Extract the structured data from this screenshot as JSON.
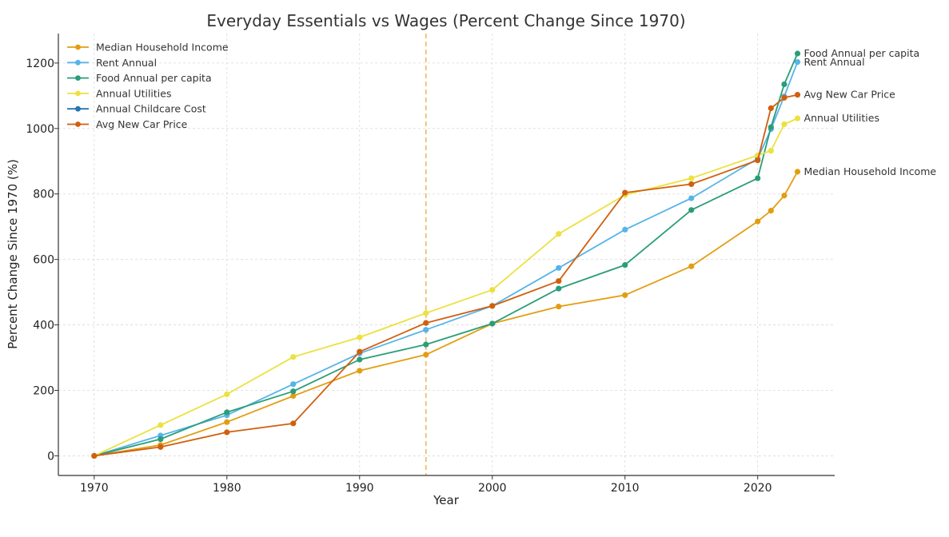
{
  "chart_data": {
    "type": "line",
    "title": "Everyday Essentials vs Wages (Percent Change Since 1970)",
    "xlabel": "Year",
    "ylabel": "Percent Change Since 1970 (%)",
    "xlim": [
      1967.3,
      2025.8
    ],
    "ylim": [
      -60,
      1290
    ],
    "xticks": [
      1970,
      1980,
      1990,
      2000,
      2010,
      2020
    ],
    "yticks": [
      0,
      200,
      400,
      600,
      800,
      1000,
      1200
    ],
    "grid": true,
    "legend_position": "top-left",
    "reference_line": {
      "x": 1995,
      "color": "#f0b552",
      "style": "dashed"
    },
    "series": [
      {
        "name": "Median Household Income",
        "color": "#e39d12",
        "end_label": "Median Household Income",
        "x": [
          1970,
          1975,
          1980,
          1985,
          1990,
          1995,
          2000,
          2005,
          2010,
          2015,
          2020,
          2021,
          2022,
          2023
        ],
        "values": [
          0,
          33,
          103,
          183,
          260,
          309,
          404,
          456,
          491,
          579,
          716,
          749,
          795,
          868
        ]
      },
      {
        "name": "Rent Annual",
        "color": "#56b4e9",
        "end_label": "Rent Annual",
        "x": [
          1970,
          1975,
          1980,
          1985,
          1990,
          1995,
          2000,
          2005,
          2010,
          2015,
          2020,
          2021,
          2022,
          2023
        ],
        "values": [
          0,
          62,
          124,
          219,
          313,
          385,
          458,
          574,
          691,
          787,
          908,
          998,
          1098,
          1203
        ]
      },
      {
        "name": "Food Annual per capita",
        "color": "#2a9d78",
        "end_label": "Food Annual per capita",
        "x": [
          1970,
          1975,
          1980,
          1985,
          1990,
          1995,
          2000,
          2005,
          2010,
          2015,
          2020,
          2021,
          2022,
          2023
        ],
        "values": [
          0,
          51,
          133,
          197,
          294,
          340,
          404,
          511,
          583,
          751,
          848,
          1004,
          1135,
          1229
        ]
      },
      {
        "name": "Annual Utilities",
        "color": "#ece13f",
        "end_label": "Annual Utilities",
        "x": [
          1970,
          1975,
          1980,
          1985,
          1990,
          1995,
          2000,
          2005,
          2010,
          2015,
          2020,
          2021,
          2022,
          2023
        ],
        "values": [
          0,
          94,
          188,
          302,
          362,
          436,
          507,
          678,
          797,
          848,
          918,
          932,
          1013,
          1031
        ]
      },
      {
        "name": "Annual Childcare Cost",
        "color": "#2575b0",
        "end_label": "",
        "x": [],
        "values": []
      },
      {
        "name": "Avg New Car Price",
        "color": "#d05f0e",
        "end_label": "Avg New Car Price",
        "x": [
          1970,
          1975,
          1980,
          1985,
          1990,
          1995,
          2000,
          2005,
          2010,
          2015,
          2020,
          2021,
          2022,
          2023
        ],
        "values": [
          0,
          27,
          72,
          99,
          318,
          406,
          458,
          534,
          804,
          830,
          903,
          1062,
          1094,
          1103
        ]
      }
    ]
  }
}
